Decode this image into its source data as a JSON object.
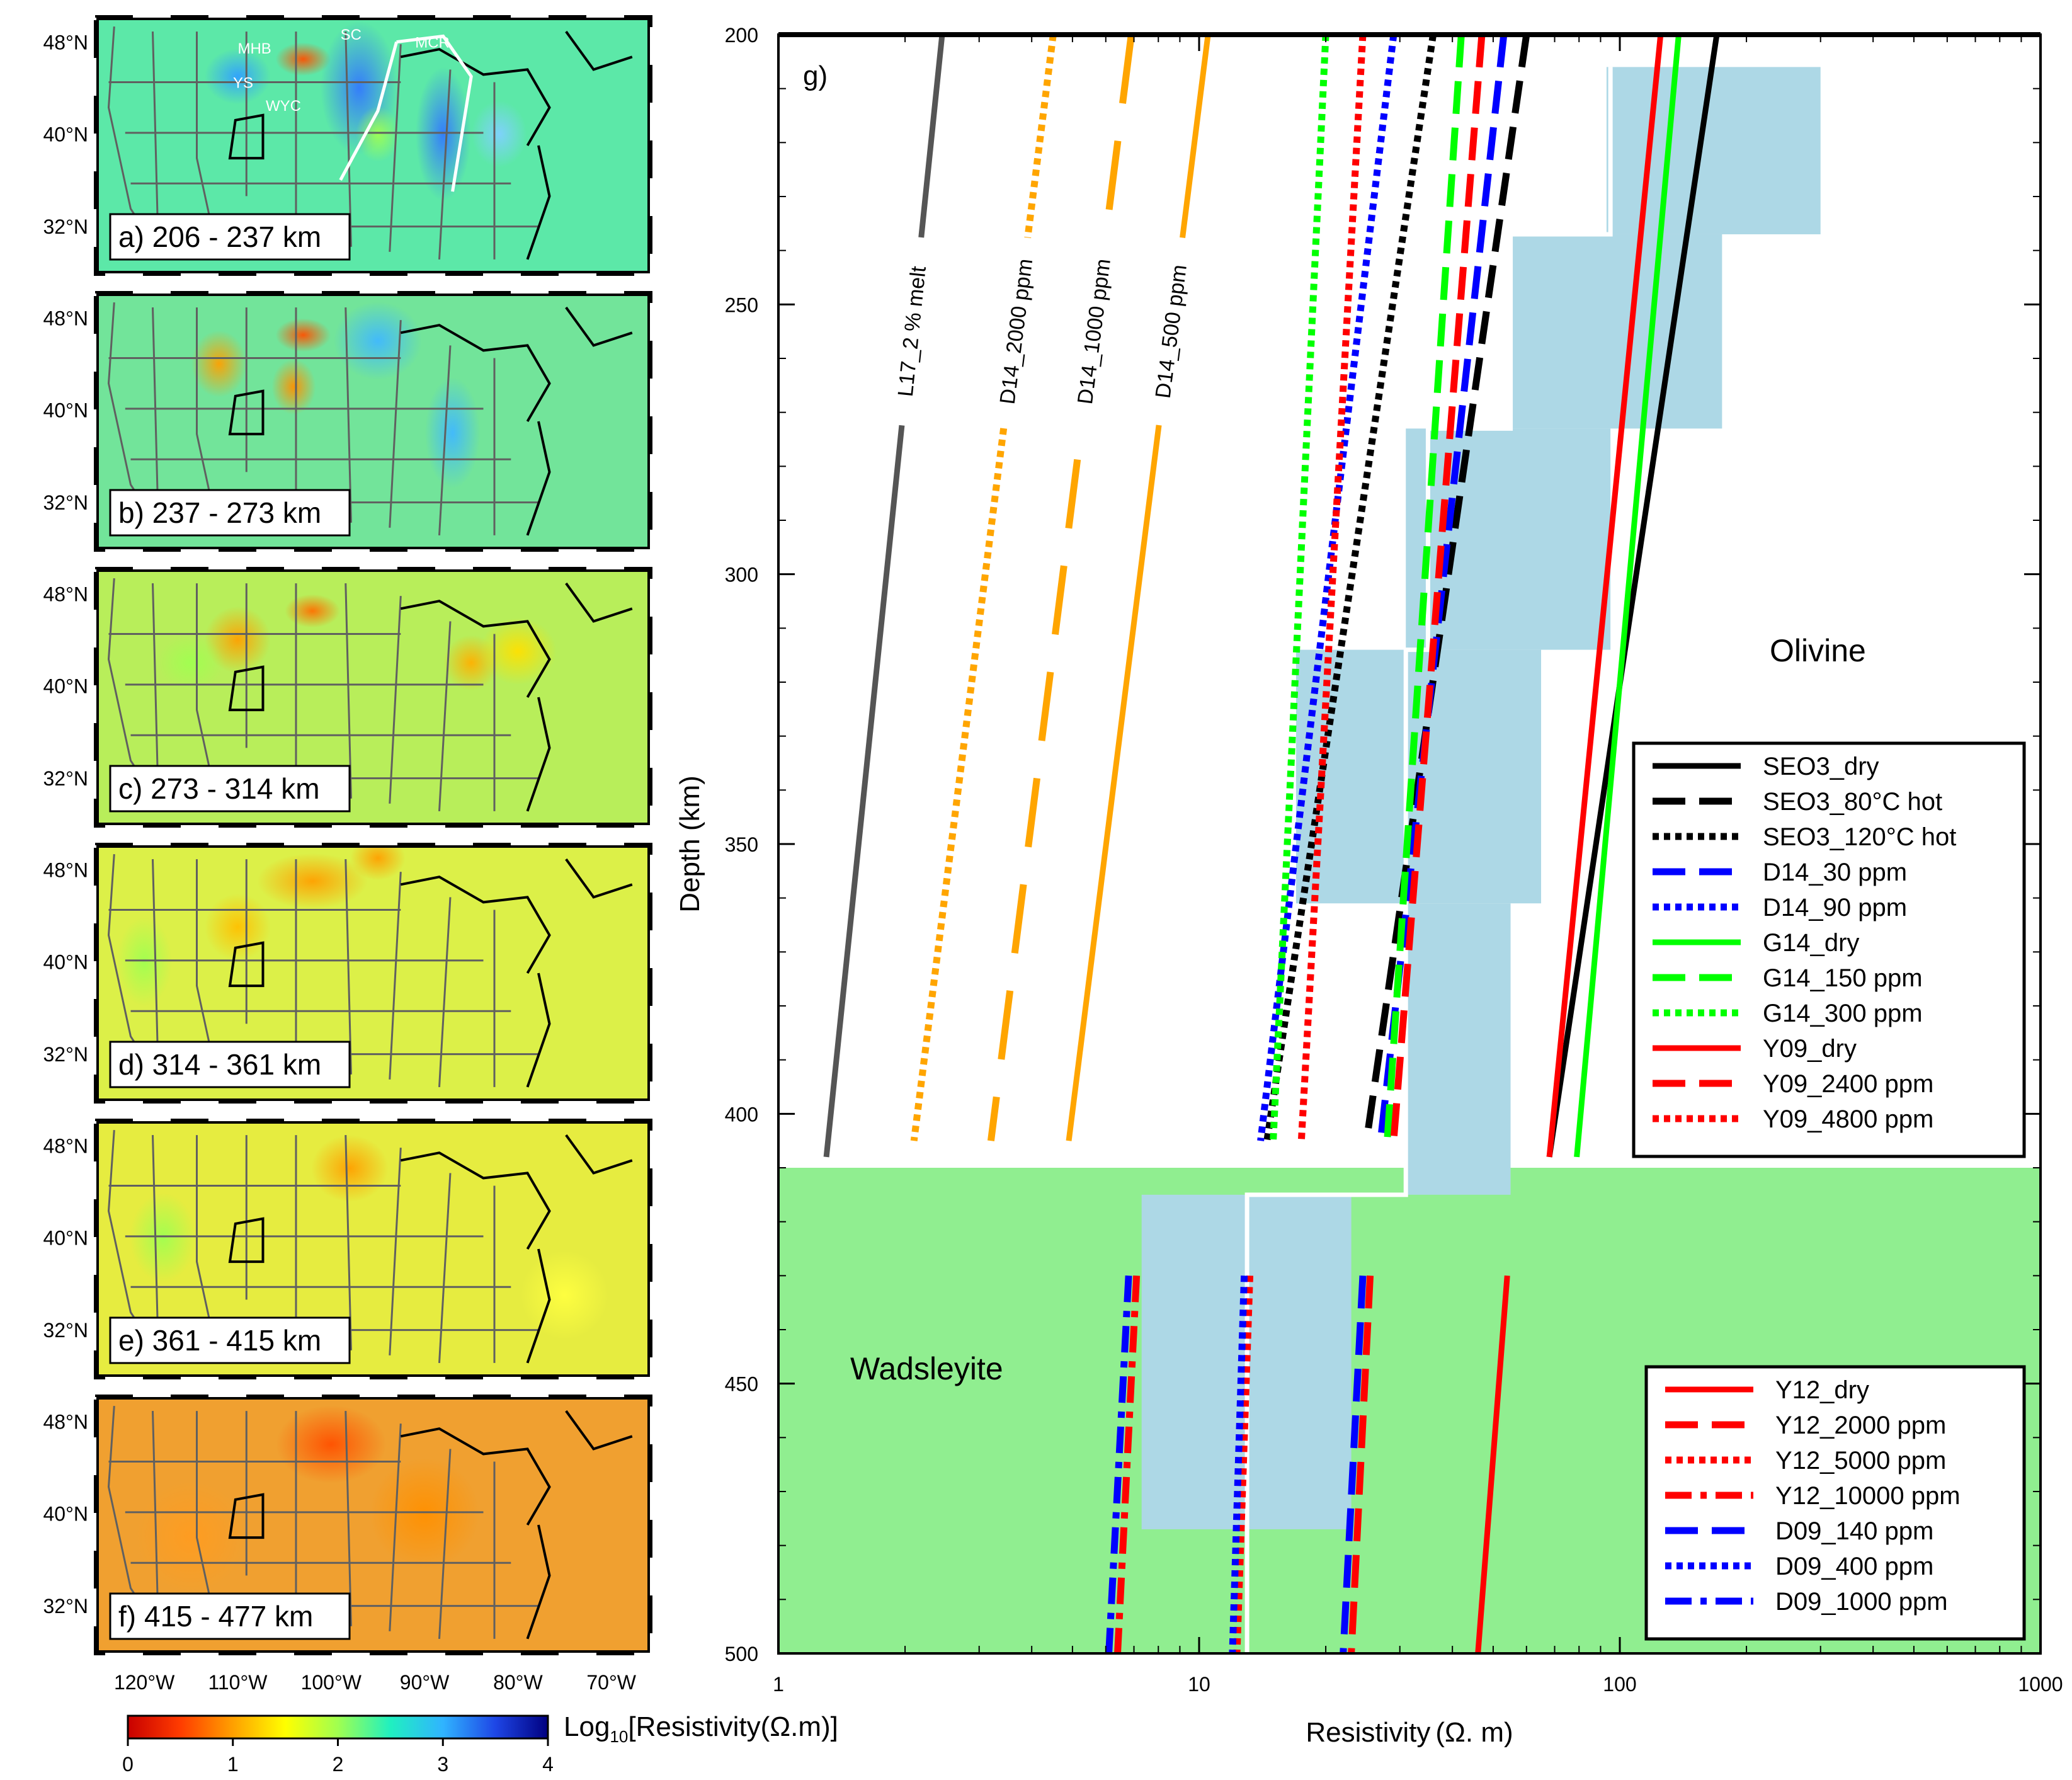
{
  "maps": {
    "panels": [
      {
        "label": "a) 206 - 237 km"
      },
      {
        "label": "b) 237 - 273 km"
      },
      {
        "label": "c) 273 - 314 km"
      },
      {
        "label": "d) 314 - 361 km"
      },
      {
        "label": "e) 361 - 415 km"
      },
      {
        "label": "f) 415 - 477 km"
      }
    ],
    "lat_ticks": [
      "48°N",
      "40°N",
      "32°N"
    ],
    "lon_ticks": [
      "120°W",
      "110°W",
      "100°W",
      "90°W",
      "80°W",
      "70°W"
    ],
    "annotations": [
      "MHB",
      "SC",
      "MCR",
      "YS",
      "WYC"
    ],
    "colorbar": {
      "title": "Log",
      "title_sub": "10",
      "title_rest": "[Resistivity(Ω.m)]",
      "ticks": [
        "0",
        "1",
        "2",
        "3",
        "4"
      ],
      "colors": [
        "#c80000",
        "#ff3c00",
        "#ffa000",
        "#ffff00",
        "#a0ff50",
        "#20f0c0",
        "#30b4ff",
        "#1e46e6",
        "#000080"
      ]
    },
    "background_colors": [
      "#5ce8a8",
      "#72e49a",
      "#b8ee5a",
      "#dcf048",
      "#e6ec40",
      "#f0a030"
    ]
  },
  "chart_data": {
    "type": "line",
    "panel_label": "g)",
    "xlabel": "Resistivity (Ω. m)",
    "ylabel": "Depth (km)",
    "xscale": "log",
    "xlim": [
      1,
      1000
    ],
    "ylim": [
      500,
      200
    ],
    "x_ticks": [
      "1",
      "10",
      "100",
      "1000"
    ],
    "y_ticks": [
      "200",
      "250",
      "300",
      "350",
      "400",
      "450",
      "500"
    ],
    "regions": [
      {
        "name": "Olivine",
        "depth_range": [
          200,
          410
        ],
        "color": "#ffffff"
      },
      {
        "name": "Wadsleyite",
        "depth_range": [
          410,
          500
        ],
        "color": "#90ee90"
      }
    ],
    "model_blocks": {
      "color": "#add8e6",
      "blocks": [
        {
          "depth": [
            206,
            237
          ],
          "x": [
            93,
            300
          ]
        },
        {
          "depth": [
            237,
            273
          ],
          "x": [
            55,
            175
          ]
        },
        {
          "depth": [
            273,
            314
          ],
          "x": [
            31,
            95
          ]
        },
        {
          "depth": [
            314,
            361
          ],
          "x": [
            17,
            65
          ]
        },
        {
          "depth": [
            361,
            415
          ],
          "x": [
            31,
            55
          ]
        },
        {
          "depth": [
            415,
            477
          ],
          "x": [
            7.3,
            23
          ]
        }
      ],
      "outline_color": "#ffffff",
      "outline": [
        [
          95,
          206
        ],
        [
          95,
          237
        ],
        [
          55,
          237
        ],
        [
          55,
          273
        ],
        [
          35,
          273
        ],
        [
          35,
          314
        ],
        [
          31,
          314
        ],
        [
          31,
          361
        ],
        [
          31,
          415
        ],
        [
          13,
          415
        ],
        [
          13,
          500
        ]
      ]
    },
    "series": [
      {
        "name": "SEO3_dry",
        "color": "#000000",
        "style": "solid",
        "x": [
          170,
          68
        ],
        "depth": [
          200,
          408
        ],
        "legend": 1
      },
      {
        "name": "SEO3_80°C hot",
        "color": "#000000",
        "style": "dashed",
        "x": [
          60,
          25
        ],
        "depth": [
          200,
          405
        ],
        "legend": 1
      },
      {
        "name": "SEO3_120°C hot",
        "color": "#000000",
        "style": "dotted",
        "x": [
          36,
          14.5
        ],
        "depth": [
          200,
          405
        ],
        "legend": 1
      },
      {
        "name": "D14_30 ppm",
        "color": "#0000ff",
        "style": "dashed",
        "x": [
          53,
          27
        ],
        "depth": [
          200,
          405
        ],
        "legend": 1
      },
      {
        "name": "D14_90 ppm",
        "color": "#0000ff",
        "style": "dotted",
        "x": [
          29,
          14
        ],
        "depth": [
          200,
          405
        ],
        "legend": 1
      },
      {
        "name": "G14_dry",
        "color": "#00ff00",
        "style": "solid",
        "x": [
          138,
          79
        ],
        "depth": [
          200,
          408
        ],
        "legend": 1
      },
      {
        "name": "G14_150 ppm",
        "color": "#00ff00",
        "style": "dashed",
        "x": [
          42,
          28
        ],
        "depth": [
          200,
          405
        ],
        "legend": 1
      },
      {
        "name": "G14_300 ppm",
        "color": "#00ff00",
        "style": "dotted",
        "x": [
          20,
          15
        ],
        "depth": [
          200,
          405
        ],
        "legend": 1
      },
      {
        "name": "Y09_dry",
        "color": "#ff0000",
        "style": "solid",
        "x": [
          125,
          68
        ],
        "depth": [
          200,
          408
        ],
        "legend": 1
      },
      {
        "name": "Y09_2400 ppm",
        "color": "#ff0000",
        "style": "dashed",
        "x": [
          47,
          29
        ],
        "depth": [
          200,
          405
        ],
        "legend": 1
      },
      {
        "name": "Y09_4800 ppm",
        "color": "#ff0000",
        "style": "dotted",
        "x": [
          24.5,
          17.5
        ],
        "depth": [
          200,
          405
        ],
        "legend": 1
      },
      {
        "name": "Y12_dry",
        "color": "#ff0000",
        "style": "solid",
        "x": [
          54,
          46
        ],
        "depth": [
          430,
          500
        ],
        "legend": 2
      },
      {
        "name": "Y12_2000 ppm",
        "color": "#ff0000",
        "style": "dashed",
        "x": [
          25.5,
          23
        ],
        "depth": [
          430,
          500
        ],
        "legend": 2
      },
      {
        "name": "Y12_5000 ppm",
        "color": "#ff0000",
        "style": "dotted",
        "x": [
          13.2,
          12.3
        ],
        "depth": [
          430,
          500
        ],
        "legend": 2
      },
      {
        "name": "Y12_10000 ppm",
        "color": "#ff0000",
        "style": "dashdot",
        "x": [
          7.1,
          6.4
        ],
        "depth": [
          430,
          500
        ],
        "legend": 2
      },
      {
        "name": "D09_140 ppm",
        "color": "#0000ff",
        "style": "dashed",
        "x": [
          24.5,
          22
        ],
        "depth": [
          430,
          500
        ],
        "legend": 2
      },
      {
        "name": "D09_400 ppm",
        "color": "#0000ff",
        "style": "dotted",
        "x": [
          12.8,
          12
        ],
        "depth": [
          430,
          500
        ],
        "legend": 2
      },
      {
        "name": "D09_1000 ppm",
        "color": "#0000ff",
        "style": "dashdot",
        "x": [
          6.8,
          6.1
        ],
        "depth": [
          430,
          500
        ],
        "legend": 2
      }
    ],
    "labelled_curves": [
      {
        "name": "L17_2 % melt",
        "color": "#555555",
        "style": "solid",
        "x": [
          2.45,
          1.3
        ],
        "depth": [
          200,
          408
        ]
      },
      {
        "name": "D14_2000 ppm",
        "color": "#ffa500",
        "style": "dotted",
        "x": [
          4.5,
          2.1
        ],
        "depth": [
          200,
          405
        ]
      },
      {
        "name": "D14_1000 ppm",
        "color": "#ffa500",
        "style": "longdash",
        "x": [
          6.9,
          3.2
        ],
        "depth": [
          200,
          405
        ]
      },
      {
        "name": "D14_500 ppm",
        "color": "#ffa500",
        "style": "solid",
        "x": [
          10.5,
          4.9
        ],
        "depth": [
          200,
          405
        ]
      }
    ]
  }
}
